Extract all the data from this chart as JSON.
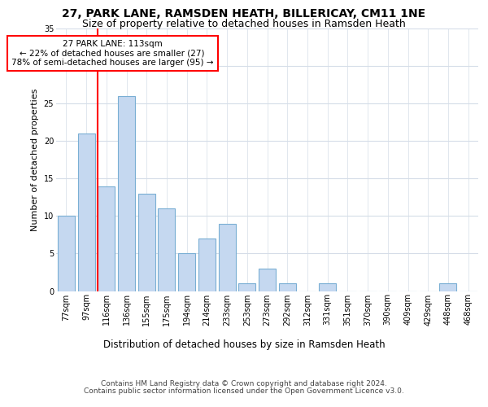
{
  "title1": "27, PARK LANE, RAMSDEN HEATH, BILLERICAY, CM11 1NE",
  "title2": "Size of property relative to detached houses in Ramsden Heath",
  "xlabel": "Distribution of detached houses by size in Ramsden Heath",
  "ylabel": "Number of detached properties",
  "categories": [
    "77sqm",
    "97sqm",
    "116sqm",
    "136sqm",
    "155sqm",
    "175sqm",
    "194sqm",
    "214sqm",
    "233sqm",
    "253sqm",
    "273sqm",
    "292sqm",
    "312sqm",
    "331sqm",
    "351sqm",
    "370sqm",
    "390sqm",
    "409sqm",
    "429sqm",
    "448sqm",
    "468sqm"
  ],
  "values": [
    10,
    21,
    14,
    26,
    13,
    11,
    5,
    7,
    9,
    1,
    3,
    1,
    0,
    1,
    0,
    0,
    0,
    0,
    0,
    1,
    0
  ],
  "bar_color": "#c5d8f0",
  "bar_edge_color": "#7aafd4",
  "red_line_index": 2,
  "annotation_line1": "27 PARK LANE: 113sqm",
  "annotation_line2": "← 22% of detached houses are smaller (27)",
  "annotation_line3": "78% of semi-detached houses are larger (95) →",
  "ylim": [
    0,
    35
  ],
  "yticks": [
    0,
    5,
    10,
    15,
    20,
    25,
    30,
    35
  ],
  "footer1": "Contains HM Land Registry data © Crown copyright and database right 2024.",
  "footer2": "Contains public sector information licensed under the Open Government Licence v3.0.",
  "bg_color": "#ffffff",
  "grid_color": "#d5dde8",
  "title1_fontsize": 10,
  "title2_fontsize": 9,
  "xlabel_fontsize": 8.5,
  "ylabel_fontsize": 8,
  "tick_fontsize": 7,
  "annotation_fontsize": 7.5,
  "footer_fontsize": 6.5
}
